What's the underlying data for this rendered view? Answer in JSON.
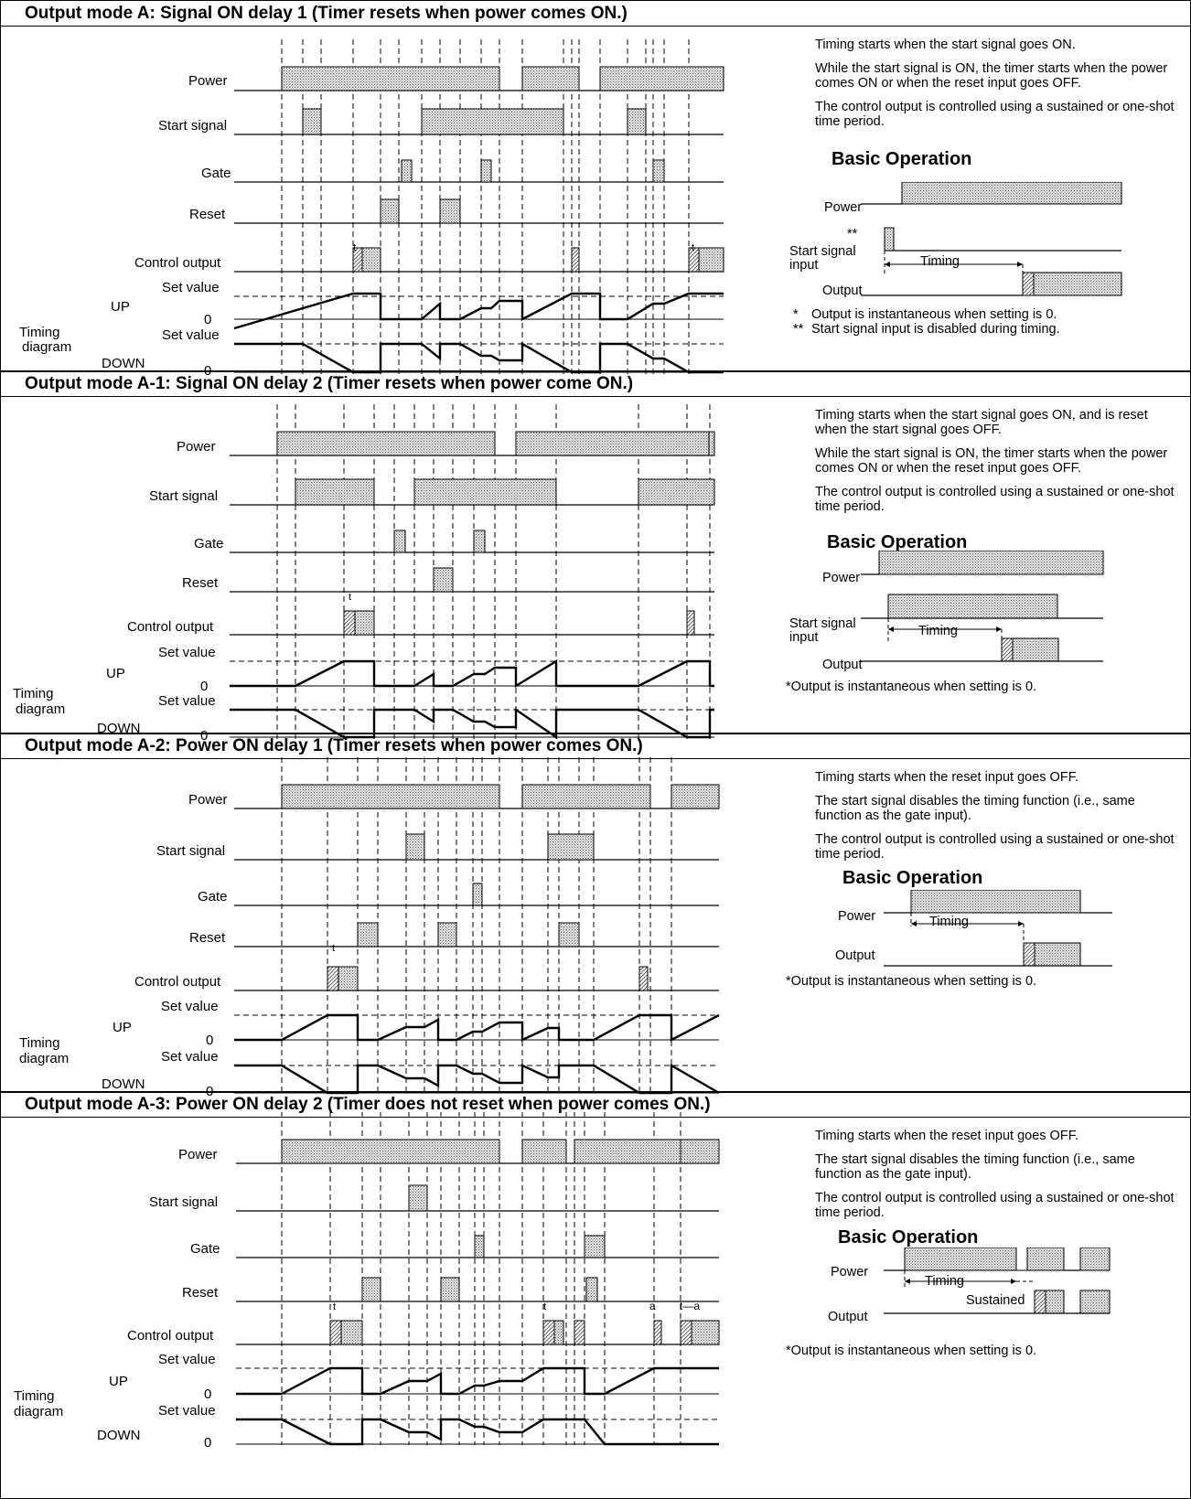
{
  "labels": {
    "power": "Power",
    "start_signal": "Start signal",
    "gate": "Gate",
    "reset": "Reset",
    "control_output": "Control output",
    "set_value": "Set value",
    "up": "UP",
    "down": "DOWN",
    "zero": "0",
    "timing": "Timing",
    "diagram": "diagram",
    "t": "t"
  },
  "basic_operation": {
    "title": "Basic Operation",
    "power": "Power",
    "start_signal": "Start signal",
    "input": "input",
    "output": "Output",
    "timing": "Timing",
    "sustained": "Sustained",
    "star2": "**"
  },
  "modes": [
    {
      "title": "Output mode A: Signal ON delay 1 (Timer resets when power comes ON.)",
      "desc": [
        "Timing starts when the start signal goes ON.",
        "While the start signal is ON, the timer starts when the power comes ON or when the reset input goes OFF.",
        "The control output is controlled using a sustained or one-shot time period."
      ],
      "notes": [
        "Output is instantaneous when setting is 0.",
        "Start signal input is disabled during timing."
      ],
      "note_marks": [
        "*",
        "**"
      ]
    },
    {
      "title": "Output mode A-1: Signal ON delay 2 (Timer resets when power come ON.)",
      "desc": [
        "Timing starts when the start signal goes ON, and is reset when the start signal goes OFF.",
        "While the start signal is ON, the timer starts when the power comes ON or when the reset input goes OFF.",
        "The control output is controlled using a sustained or one-shot time period."
      ],
      "notes": [
        "*Output is instantaneous when setting is 0."
      ]
    },
    {
      "title": "Output mode A-2: Power ON delay 1 (Timer resets when power comes ON.)",
      "desc": [
        "Timing starts when the reset input goes OFF.",
        "The start signal disables the timing function (i.e., same function as the gate input).",
        "The control output is controlled using a sustained or one-shot time period."
      ],
      "notes": [
        "*Output is instantaneous when setting is 0."
      ]
    },
    {
      "title": "Output mode A-3: Power ON delay 2 (Timer does not reset when power comes ON.)",
      "desc": [
        "Timing starts when the reset input goes OFF.",
        "The start signal disables the timing function (i.e., same function as the gate input).",
        "The control output is controlled using a sustained or one-shot time period."
      ],
      "notes": [
        "*Output is instantaneous when setting is 0."
      ],
      "marks": [
        "a",
        "t—a"
      ]
    }
  ]
}
